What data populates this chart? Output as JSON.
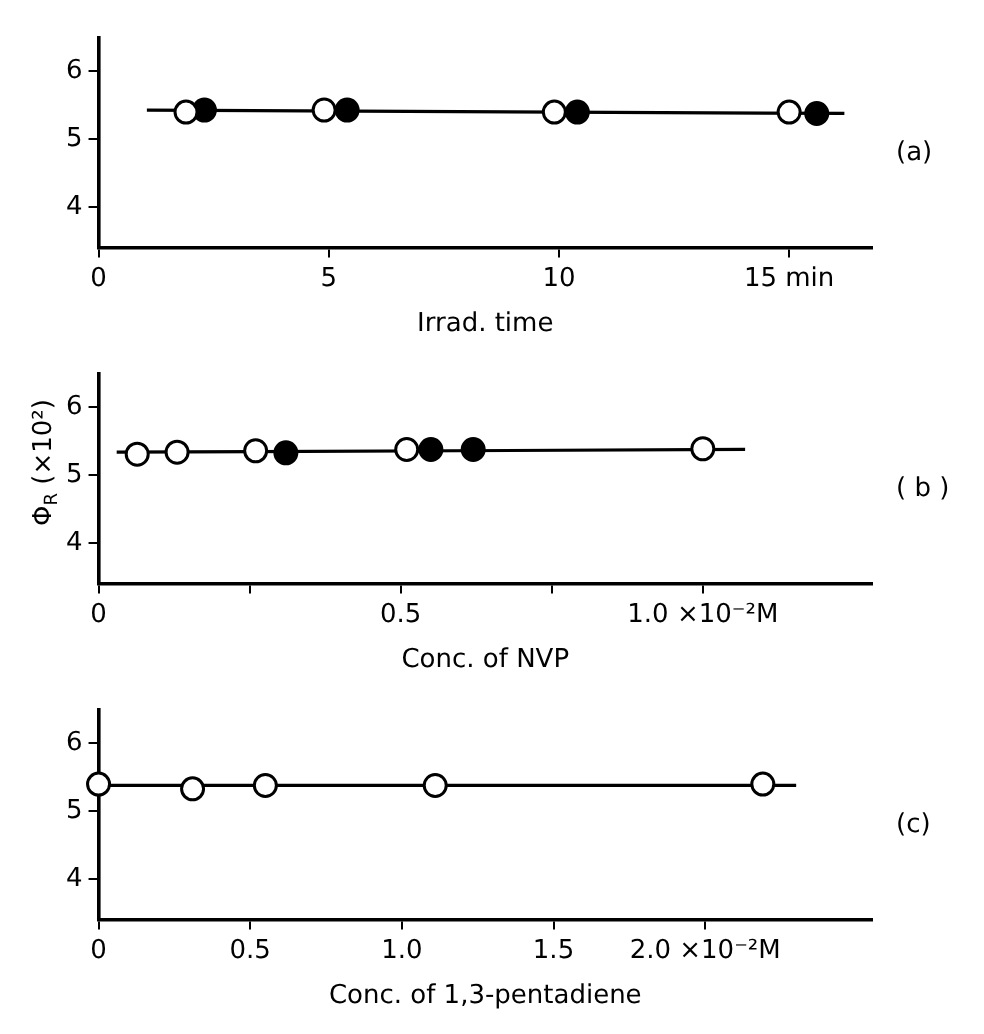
{
  "chart_data": [
    {
      "type": "scatter",
      "xlabel": "Irrad. time",
      "xlim": [
        0,
        16.8
      ],
      "xticks": [
        0,
        5,
        10,
        {
          "value": 15,
          "label": "15 min"
        }
      ],
      "ylim": [
        3.4,
        6.5
      ],
      "yticks": [
        4,
        5,
        6
      ],
      "annotations": [
        "(a)"
      ],
      "series": [
        {
          "type": "line",
          "marker": "none",
          "color": "#000000",
          "x": [
            1.05,
            16.2
          ],
          "values": [
            5.43,
            5.38
          ]
        },
        {
          "marker": "circle",
          "color": "#ffffff",
          "x": [
            1.9,
            4.9,
            9.9,
            15.0
          ],
          "values": [
            5.4,
            5.43,
            5.4,
            5.4
          ]
        },
        {
          "marker": "circle",
          "color": "#000000",
          "x": [
            2.3,
            5.4,
            10.4,
            15.6
          ],
          "values": [
            5.43,
            5.43,
            5.4,
            5.38
          ]
        }
      ]
    },
    {
      "type": "scatter",
      "xlabel": "Conc. of NVP",
      "ylabel": "Φ$_{R}$ (×10²)",
      "xlim": [
        0,
        1.28
      ],
      "xticks": [
        0,
        {
          "value": 0.25,
          "label": null
        },
        0.5,
        {
          "value": 0.75,
          "label": null
        },
        {
          "value": 1.0,
          "label": "1.0 ×10⁻²M"
        }
      ],
      "ylim": [
        3.4,
        6.5
      ],
      "yticks": [
        4,
        5,
        6
      ],
      "annotations": [
        "( b )"
      ],
      "series": [
        {
          "type": "line",
          "marker": "none",
          "color": "#000000",
          "x": [
            0.03,
            1.07
          ],
          "values": [
            5.34,
            5.38
          ]
        },
        {
          "marker": "circle",
          "color": "#ffffff",
          "x": [
            0.064,
            0.13,
            0.26,
            0.51,
            1.0
          ],
          "values": [
            5.31,
            5.34,
            5.36,
            5.38,
            5.39
          ]
        },
        {
          "marker": "circle",
          "color": "#000000",
          "x": [
            0.31,
            0.55,
            0.62
          ],
          "values": [
            5.33,
            5.38,
            5.38
          ]
        }
      ]
    },
    {
      "type": "scatter",
      "xlabel": "Conc. of 1,3-pentadiene",
      "xlim": [
        0,
        2.55
      ],
      "xticks": [
        0,
        0.5,
        {
          "value": 1.0,
          "label": "1.0"
        },
        1.5,
        {
          "value": 2.0,
          "label": "2.0 ×10⁻²M"
        }
      ],
      "ylim": [
        3.4,
        6.5
      ],
      "yticks": [
        4,
        5,
        6
      ],
      "annotations": [
        "(c)"
      ],
      "series": [
        {
          "type": "line",
          "marker": "none",
          "color": "#000000",
          "x": [
            0.0,
            2.3
          ],
          "values": [
            5.38,
            5.38
          ]
        },
        {
          "marker": "circle",
          "color": "#ffffff",
          "x": [
            0.0,
            0.31,
            0.55,
            1.11,
            2.19
          ],
          "values": [
            5.4,
            5.33,
            5.38,
            5.38,
            5.4
          ]
        }
      ]
    }
  ]
}
